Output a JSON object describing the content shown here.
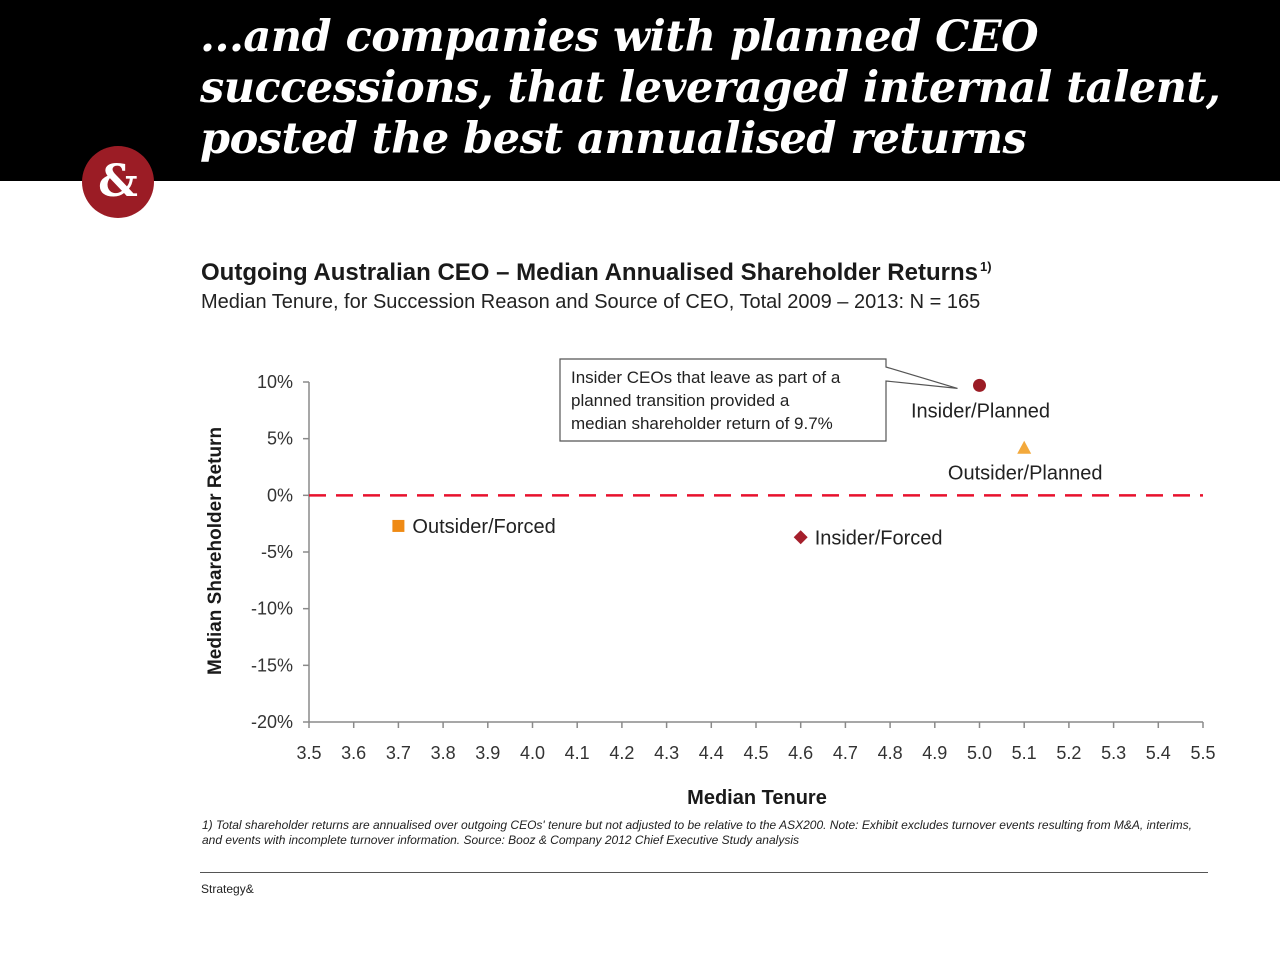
{
  "slide": {
    "title": "...and companies with planned CEO successions, that leveraged internal talent, posted the best annualised returns",
    "logo_text": "&",
    "brand_color": "#9b1c25",
    "footnote": "1) Total shareholder returns are annualised over outgoing CEOs' tenure but not adjusted to be relative to the ASX200. Note: Exhibit excludes turnover events resulting from M&A, interims, and events with incomplete turnover information. Source: Booz & Company 2012 Chief Executive Study analysis",
    "footer_brand": "Strategy&"
  },
  "chart_data": {
    "type": "scatter",
    "title": "Outgoing Australian CEO – Median Annualised Shareholder Returns",
    "title_footnote_mark": "1)",
    "subtitle": "Median Tenure, for Succession Reason and Source of CEO, Total 2009 – 2013: N = 165",
    "xlabel": "Median Tenure",
    "ylabel": "Median Shareholder Return",
    "xlim": [
      3.5,
      5.5
    ],
    "ylim": [
      -20,
      10
    ],
    "x_ticks": [
      "3.5",
      "3.6",
      "3.7",
      "3.8",
      "3.9",
      "4.0",
      "4.1",
      "4.2",
      "4.3",
      "4.4",
      "4.5",
      "4.6",
      "4.7",
      "4.8",
      "4.9",
      "5.0",
      "5.1",
      "5.2",
      "5.3",
      "5.4",
      "5.5"
    ],
    "y_ticks": [
      "10%",
      "5%",
      "0%",
      "-5%",
      "-10%",
      "-15%",
      "-20%"
    ],
    "grid": false,
    "reference_line": {
      "y": 0,
      "style": "dashed",
      "color": "#e8112d"
    },
    "points": [
      {
        "name": "Insider/Planned",
        "x": 5.0,
        "y": 9.7,
        "marker": "circle",
        "color": "#9b1c25",
        "label_side": "below"
      },
      {
        "name": "Outsider/Planned",
        "x": 5.1,
        "y": 4.2,
        "marker": "triangle",
        "color": "#f3a93c",
        "label_side": "below"
      },
      {
        "name": "Outsider/Forced",
        "x": 3.7,
        "y": -2.7,
        "marker": "square",
        "color": "#ef8a14",
        "label_side": "right"
      },
      {
        "name": "Insider/Forced",
        "x": 4.6,
        "y": -3.7,
        "marker": "diamond",
        "color": "#a51f2c",
        "label_side": "right"
      }
    ],
    "callout": {
      "lines": [
        "Insider CEOs that leave as part of a",
        "planned transition provided a",
        "median shareholder return of 9.7%"
      ],
      "points_to": "Insider/Planned"
    }
  }
}
